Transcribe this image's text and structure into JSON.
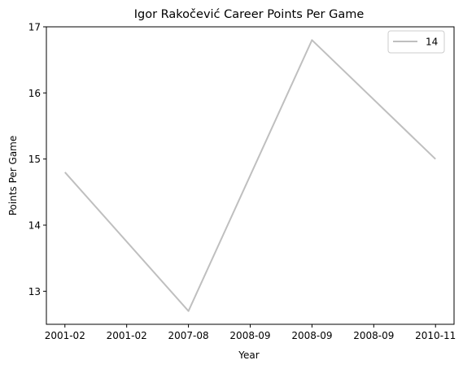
{
  "chart_data": {
    "type": "line",
    "title": "Igor Rakočević Career Points Per Game",
    "xlabel": "Year",
    "ylabel": "Points Per Game",
    "x_tick_labels": [
      "2001-02",
      "2001-02",
      "2007-08",
      "2008-09",
      "2008-09",
      "2008-09",
      "2010-11"
    ],
    "x_tick_positions": [
      0,
      0.5,
      1,
      1.5,
      2,
      2.5,
      3
    ],
    "x_points": [
      0,
      1,
      2,
      3
    ],
    "series": [
      {
        "name": "14",
        "values": [
          14.8,
          12.7,
          16.8,
          15.0
        ],
        "color": "#bfbfbf"
      }
    ],
    "xlim": [
      -0.15,
      3.15
    ],
    "ylim": [
      12.5,
      17.0
    ],
    "y_ticks": [
      13,
      14,
      15,
      16,
      17
    ],
    "legend": "top-right",
    "grid": false
  }
}
